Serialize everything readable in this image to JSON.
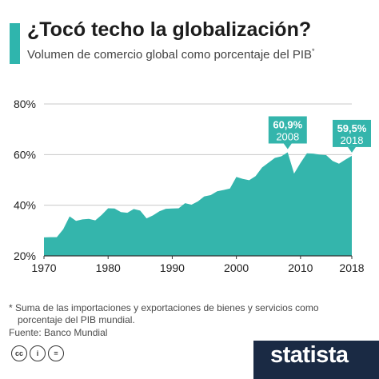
{
  "header": {
    "title": "¿Tocó techo la globalización?",
    "subtitle": "Volumen de comercio global como porcentaje del PIB",
    "subtitle_marker": "*"
  },
  "chart_data": {
    "type": "area",
    "title": "¿Tocó techo la globalización?",
    "subtitle": "Volumen de comercio global como porcentaje del PIB*",
    "xlabel": "",
    "ylabel": "",
    "x_ticks": [
      "1970",
      "1980",
      "1990",
      "2000",
      "2010",
      "2018"
    ],
    "y_ticks": [
      "20%",
      "40%",
      "60%",
      "80%"
    ],
    "xlim": [
      1970,
      2018
    ],
    "ylim": [
      20,
      80
    ],
    "grid": true,
    "fill_color": "#34b5ac",
    "x": [
      1970,
      1971,
      1972,
      1973,
      1974,
      1975,
      1976,
      1977,
      1978,
      1979,
      1980,
      1981,
      1982,
      1983,
      1984,
      1985,
      1986,
      1987,
      1988,
      1989,
      1990,
      1991,
      1992,
      1993,
      1994,
      1995,
      1996,
      1997,
      1998,
      1999,
      2000,
      2001,
      2002,
      2003,
      2004,
      2005,
      2006,
      2007,
      2008,
      2009,
      2010,
      2011,
      2012,
      2013,
      2014,
      2015,
      2016,
      2017,
      2018
    ],
    "values": [
      27.3,
      27.4,
      27.4,
      30.5,
      35.6,
      33.8,
      34.4,
      34.6,
      34.0,
      36.2,
      38.8,
      38.7,
      37.3,
      37.0,
      38.5,
      37.9,
      34.8,
      36.0,
      37.6,
      38.6,
      38.7,
      38.8,
      40.8,
      40.2,
      41.5,
      43.5,
      44.0,
      45.5,
      46.0,
      46.6,
      51.2,
      50.4,
      49.9,
      51.5,
      54.9,
      56.8,
      58.7,
      59.3,
      60.9,
      52.5,
      56.7,
      60.5,
      60.4,
      60.0,
      59.8,
      57.5,
      56.4,
      58.0,
      59.5
    ],
    "annotations": [
      {
        "value_label": "60,9%",
        "year_label": "2008",
        "x": 2008,
        "y": 60.9
      },
      {
        "value_label": "59,5%",
        "year_label": "2018",
        "x": 2018,
        "y": 59.5
      }
    ]
  },
  "footer": {
    "footnote_line1": "* Suma de las importaciones y exportaciones de bienes y servicios como",
    "footnote_line2": "porcentaje del PIB mundial.",
    "source": "Fuente: Banco Mundial",
    "license_icons": [
      {
        "icon": "cc-icon",
        "text": "cc"
      },
      {
        "icon": "by-icon",
        "text": "i"
      },
      {
        "icon": "nd-icon",
        "text": "="
      }
    ],
    "brand": "statista",
    "brand_color": "#1a2a44",
    "accent_color": "#2fb5ad"
  }
}
